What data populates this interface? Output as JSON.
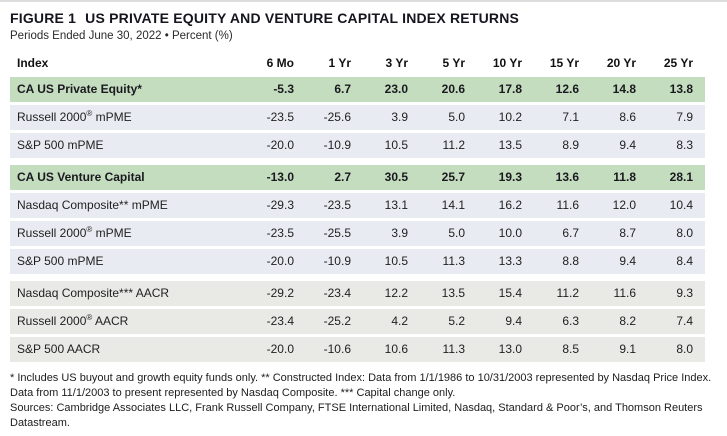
{
  "header": {
    "figure_number": "FIGURE 1",
    "title": "US PRIVATE EQUITY AND VENTURE CAPITAL INDEX RETURNS",
    "subtitle": "Periods Ended June 30, 2022 • Percent (%)"
  },
  "colors": {
    "highlight_row_bg": "#c5ddbf",
    "mpme_row_bg": "#e9ebf2",
    "aacr_row_bg": "#e9e9e6",
    "text": "#1f1f1f",
    "top_border": "#dcdcdc"
  },
  "table": {
    "columns": [
      "Index",
      "6 Mo",
      "1 Yr",
      "3 Yr",
      "5 Yr",
      "10 Yr",
      "15 Yr",
      "20 Yr",
      "25 Yr"
    ],
    "rows": [
      {
        "label": "CA US Private Equity*",
        "style": "highlight",
        "group_start": false,
        "values": [
          "-5.3",
          "6.7",
          "23.0",
          "20.6",
          "17.8",
          "12.6",
          "14.8",
          "13.8"
        ]
      },
      {
        "label": "Russell 2000® mPME",
        "style": "blue",
        "group_start": false,
        "values": [
          "-23.5",
          "-25.6",
          "3.9",
          "5.0",
          "10.2",
          "7.1",
          "8.6",
          "7.9"
        ]
      },
      {
        "label": "S&P 500 mPME",
        "style": "blue",
        "group_start": false,
        "values": [
          "-20.0",
          "-10.9",
          "10.5",
          "11.2",
          "13.5",
          "8.9",
          "9.4",
          "8.3"
        ]
      },
      {
        "label": "CA US Venture Capital",
        "style": "highlight",
        "group_start": true,
        "values": [
          "-13.0",
          "2.7",
          "30.5",
          "25.7",
          "19.3",
          "13.6",
          "11.8",
          "28.1"
        ]
      },
      {
        "label": "Nasdaq Composite** mPME",
        "style": "blue",
        "group_start": false,
        "values": [
          "-29.3",
          "-23.5",
          "13.1",
          "14.1",
          "16.2",
          "11.6",
          "12.0",
          "10.4"
        ]
      },
      {
        "label": "Russell 2000® mPME",
        "style": "blue",
        "group_start": false,
        "values": [
          "-23.5",
          "-25.5",
          "3.9",
          "5.0",
          "10.0",
          "6.7",
          "8.7",
          "8.0"
        ]
      },
      {
        "label": "S&P 500 mPME",
        "style": "blue",
        "group_start": false,
        "values": [
          "-20.0",
          "-10.9",
          "10.5",
          "11.3",
          "13.3",
          "8.8",
          "9.4",
          "8.4"
        ]
      },
      {
        "label": "Nasdaq Composite*** AACR",
        "style": "gray",
        "group_start": true,
        "values": [
          "-29.2",
          "-23.4",
          "12.2",
          "13.5",
          "15.4",
          "11.2",
          "11.6",
          "9.3"
        ]
      },
      {
        "label": "Russell 2000® AACR",
        "style": "gray",
        "group_start": false,
        "values": [
          "-23.4",
          "-25.2",
          "4.2",
          "5.2",
          "9.4",
          "6.3",
          "8.2",
          "7.4"
        ]
      },
      {
        "label": "S&P 500 AACR",
        "style": "gray",
        "group_start": false,
        "values": [
          "-20.0",
          "-10.6",
          "10.6",
          "11.3",
          "13.0",
          "8.5",
          "9.1",
          "8.0"
        ]
      }
    ]
  },
  "footnotes": {
    "note": "* Includes US buyout and growth equity funds only. ** Constructed Index: Data from 1/1/1986 to 10/31/2003 represented by Nasdaq Price Index. Data from 11/1/2003 to present represented by Nasdaq Composite. *** Capital change only.",
    "sources": "Sources: Cambridge Associates LLC, Frank Russell Company, FTSE International Limited, Nasdaq, Standard & Poor’s, and Thomson Reuters Datastream."
  }
}
